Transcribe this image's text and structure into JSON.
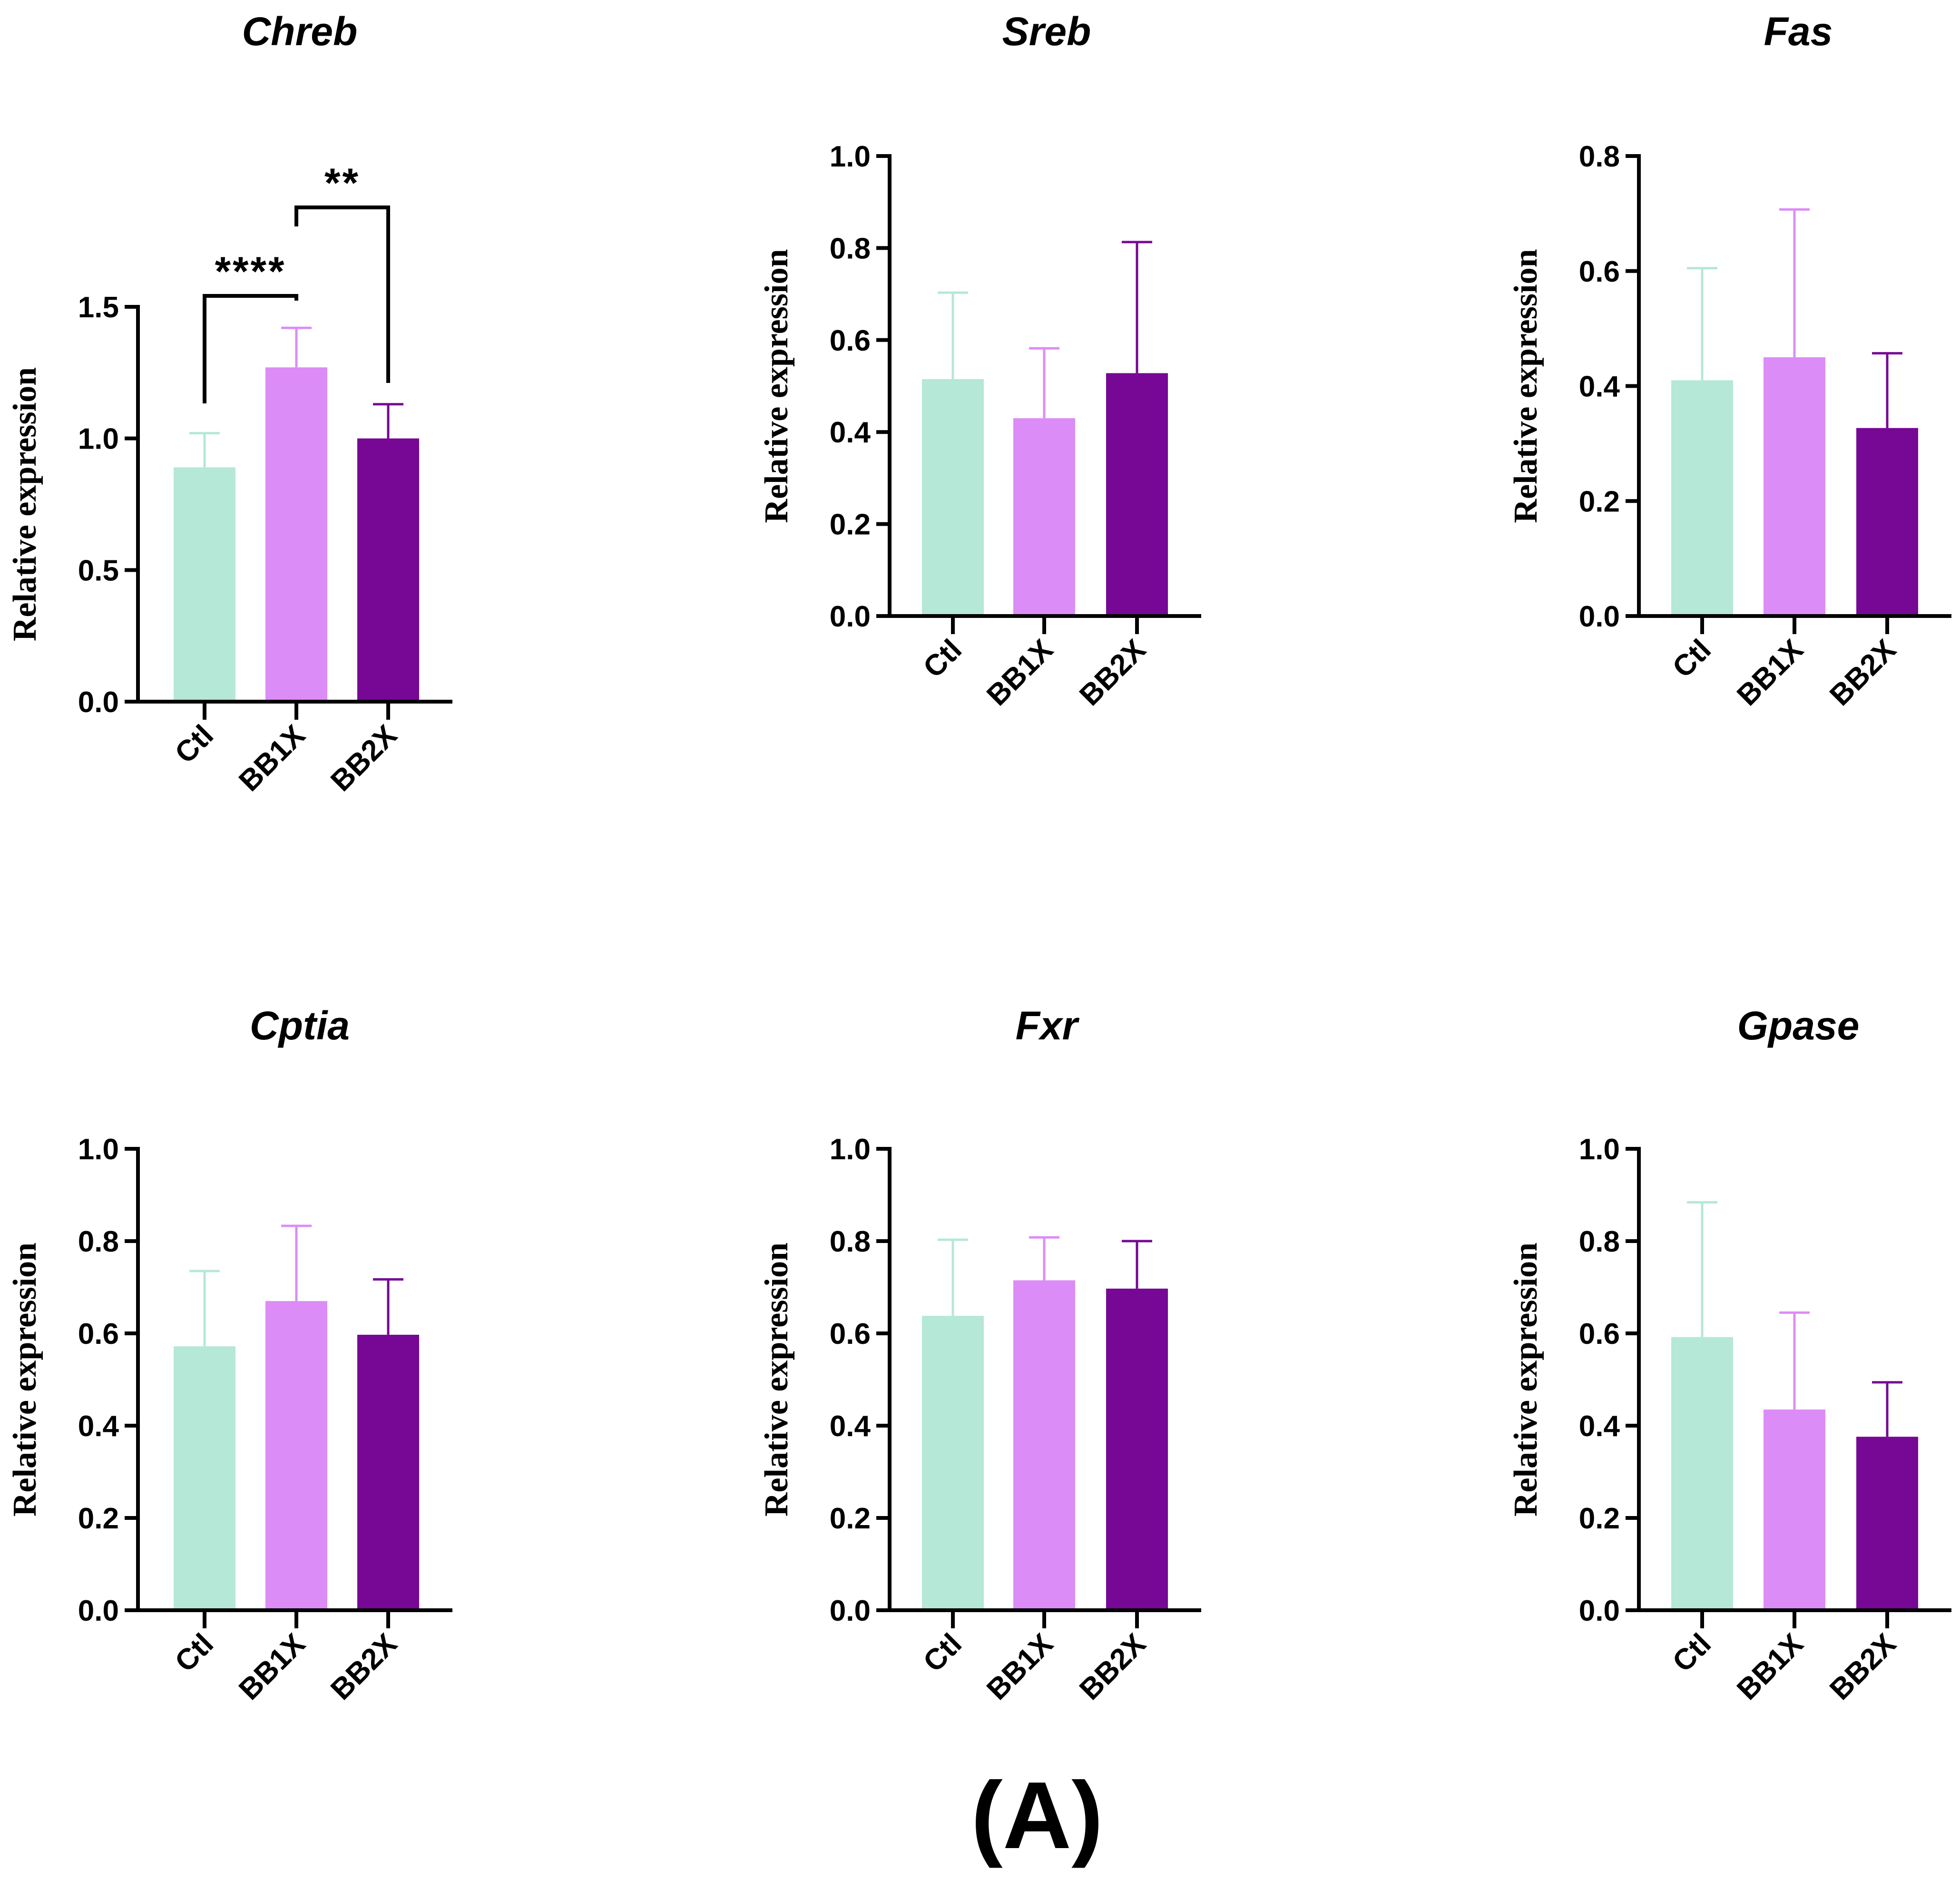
{
  "figure_label": "(A)",
  "chart_data": [
    {
      "type": "bar",
      "title": "Chreb",
      "ylabel": "Relative expression",
      "categories": [
        "Ctl",
        "BB1X",
        "BB2X"
      ],
      "values": [
        0.89,
        1.27,
        1.0
      ],
      "errors": [
        0.13,
        0.15,
        0.13
      ],
      "ylim": [
        0,
        1.5
      ],
      "yticks": [
        "0.0",
        "0.5",
        "1.0",
        "1.5"
      ],
      "colors": [
        "#b5e8d6",
        "#dc8cf6",
        "#760895"
      ],
      "significance": [
        {
          "from": 0,
          "to": 1,
          "label": "****"
        },
        {
          "from": 1,
          "to": 2,
          "label": "**"
        }
      ]
    },
    {
      "type": "bar",
      "title": "Sreb",
      "ylabel": "Relative expression",
      "categories": [
        "Ctl",
        "BB1X",
        "BB2X"
      ],
      "values": [
        0.515,
        0.43,
        0.528
      ],
      "errors": [
        0.188,
        0.152,
        0.285
      ],
      "ylim": [
        0,
        1.0
      ],
      "yticks": [
        "0.0",
        "0.2",
        "0.4",
        "0.6",
        "0.8",
        "1.0"
      ],
      "colors": [
        "#b5e8d6",
        "#dc8cf6",
        "#760895"
      ]
    },
    {
      "type": "bar",
      "title": "Fas",
      "ylabel": "Relative expression",
      "categories": [
        "Ctl",
        "BB1X",
        "BB2X"
      ],
      "values": [
        0.41,
        0.45,
        0.327
      ],
      "errors": [
        0.195,
        0.257,
        0.13
      ],
      "ylim": [
        0,
        0.8
      ],
      "yticks": [
        "0.0",
        "0.2",
        "0.4",
        "0.6",
        "0.8"
      ],
      "colors": [
        "#b5e8d6",
        "#dc8cf6",
        "#760895"
      ]
    },
    {
      "type": "bar",
      "title": "Cptia",
      "ylabel": "Relative expression",
      "categories": [
        "Ctl",
        "BB1X",
        "BB2X"
      ],
      "values": [
        0.572,
        0.67,
        0.597
      ],
      "errors": [
        0.163,
        0.163,
        0.12
      ],
      "ylim": [
        0,
        1.0
      ],
      "yticks": [
        "0.0",
        "0.2",
        "0.4",
        "0.6",
        "0.8",
        "1.0"
      ],
      "colors": [
        "#b5e8d6",
        "#dc8cf6",
        "#760895"
      ]
    },
    {
      "type": "bar",
      "title": "Fxr",
      "ylabel": "Relative expression",
      "categories": [
        "Ctl",
        "BB1X",
        "BB2X"
      ],
      "values": [
        0.638,
        0.715,
        0.697
      ],
      "errors": [
        0.165,
        0.093,
        0.103
      ],
      "ylim": [
        0,
        1.0
      ],
      "yticks": [
        "0.0",
        "0.2",
        "0.4",
        "0.6",
        "0.8",
        "1.0"
      ],
      "colors": [
        "#b5e8d6",
        "#dc8cf6",
        "#760895"
      ]
    },
    {
      "type": "bar",
      "title": "Gpase",
      "ylabel": "Relative expression",
      "categories": [
        "Ctl",
        "BB1X",
        "BB2X"
      ],
      "values": [
        0.592,
        0.435,
        0.376
      ],
      "errors": [
        0.292,
        0.21,
        0.118
      ],
      "ylim": [
        0,
        1.0
      ],
      "yticks": [
        "0.0",
        "0.2",
        "0.4",
        "0.6",
        "0.8",
        "1.0"
      ],
      "colors": [
        "#b5e8d6",
        "#dc8cf6",
        "#760895"
      ]
    }
  ]
}
